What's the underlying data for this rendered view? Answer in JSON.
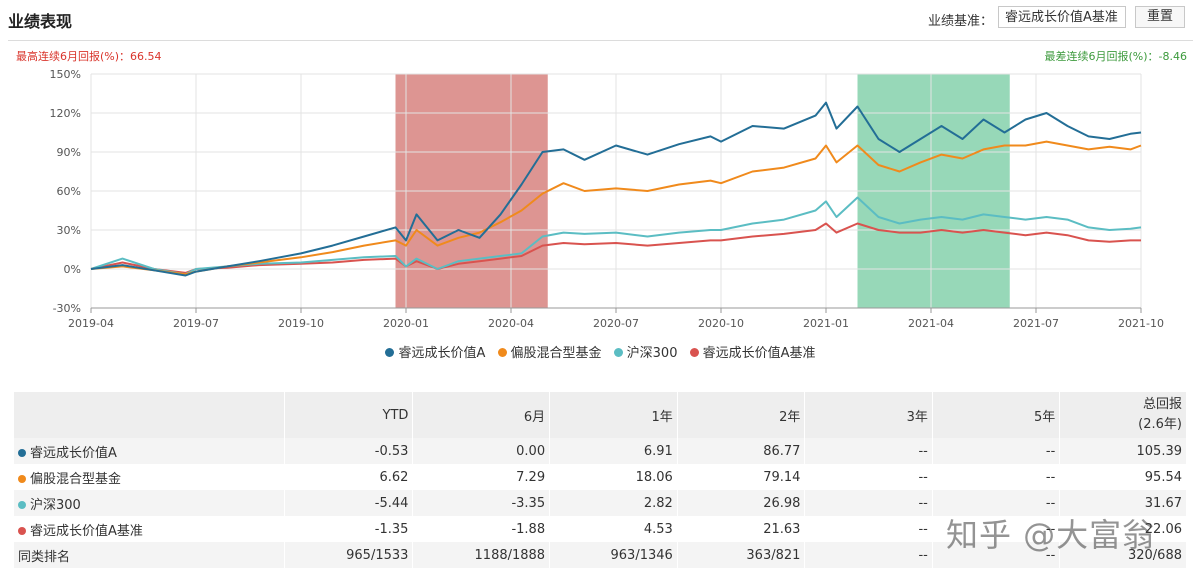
{
  "header": {
    "title": "业绩表现",
    "benchmark_label": "业绩基准：",
    "benchmark_value": "睿远成长价值A基准",
    "reset_label": "重置"
  },
  "notes": {
    "max": "最高连续6月回报(%)：66.54",
    "min": "最差连续6月回报(%)：-8.46"
  },
  "colors": {
    "fund": "#236e96",
    "peer": "#f08a1c",
    "csi300": "#5bbdc3",
    "bench": "#d9534f",
    "up_band": "#dd9592",
    "down_band": "#97d8b8"
  },
  "chart_data": {
    "type": "line",
    "ylim": [
      -30,
      150
    ],
    "yticks": [
      -30,
      0,
      30,
      60,
      90,
      120,
      150
    ],
    "ytick_labels": [
      "-30%",
      "0%",
      "30%",
      "60%",
      "90%",
      "120%",
      "150%"
    ],
    "xticks": [
      "2019-04",
      "2019-07",
      "2019-10",
      "2020-01",
      "2020-04",
      "2020-07",
      "2020-10",
      "2021-01",
      "2021-04",
      "2021-07",
      "2021-10"
    ],
    "bands": [
      {
        "label": "最高连续6月",
        "from": 2.9,
        "to": 4.35
      },
      {
        "label": "最差连续6月",
        "from": 7.3,
        "to": 8.75
      }
    ],
    "series": [
      {
        "name": "睿远成长价值A",
        "color_key": "fund",
        "x": [
          0,
          0.3,
          0.6,
          0.9,
          1.0,
          1.3,
          1.6,
          2.0,
          2.3,
          2.6,
          2.9,
          3.0,
          3.1,
          3.3,
          3.5,
          3.7,
          3.9,
          4.1,
          4.3,
          4.5,
          4.7,
          5.0,
          5.3,
          5.6,
          5.9,
          6.0,
          6.3,
          6.6,
          6.9,
          7.0,
          7.1,
          7.3,
          7.5,
          7.7,
          7.9,
          8.1,
          8.3,
          8.5,
          8.7,
          8.9,
          9.1,
          9.3,
          9.5,
          9.7,
          9.9,
          10.0
        ],
        "y": [
          0,
          3,
          -1,
          -5,
          -2,
          2,
          6,
          12,
          18,
          25,
          32,
          22,
          42,
          22,
          30,
          24,
          42,
          65,
          90,
          92,
          84,
          95,
          88,
          96,
          102,
          98,
          110,
          108,
          118,
          128,
          108,
          125,
          100,
          90,
          100,
          110,
          100,
          115,
          105,
          115,
          120,
          110,
          102,
          100,
          104,
          105
        ]
      },
      {
        "name": "偏股混合型基金",
        "color_key": "peer",
        "x": [
          0,
          0.3,
          0.6,
          0.9,
          1.0,
          1.3,
          1.6,
          2.0,
          2.3,
          2.6,
          2.9,
          3.0,
          3.1,
          3.3,
          3.5,
          3.7,
          3.9,
          4.1,
          4.3,
          4.5,
          4.7,
          5.0,
          5.3,
          5.6,
          5.9,
          6.0,
          6.3,
          6.6,
          6.9,
          7.0,
          7.1,
          7.3,
          7.5,
          7.7,
          7.9,
          8.1,
          8.3,
          8.5,
          8.7,
          8.9,
          9.1,
          9.3,
          9.5,
          9.7,
          9.9,
          10.0
        ],
        "y": [
          0,
          2,
          -1,
          -4,
          -2,
          2,
          5,
          9,
          13,
          18,
          22,
          18,
          30,
          18,
          24,
          28,
          36,
          45,
          58,
          66,
          60,
          62,
          60,
          65,
          68,
          66,
          75,
          78,
          85,
          95,
          82,
          95,
          80,
          75,
          82,
          88,
          85,
          92,
          95,
          95,
          98,
          95,
          92,
          94,
          92,
          95
        ]
      },
      {
        "name": "沪深300",
        "color_key": "csi300",
        "x": [
          0,
          0.3,
          0.6,
          0.9,
          1.0,
          1.3,
          1.6,
          2.0,
          2.3,
          2.6,
          2.9,
          3.0,
          3.1,
          3.3,
          3.5,
          3.7,
          3.9,
          4.1,
          4.3,
          4.5,
          4.7,
          5.0,
          5.3,
          5.6,
          5.9,
          6.0,
          6.3,
          6.6,
          6.9,
          7.0,
          7.1,
          7.3,
          7.5,
          7.7,
          7.9,
          8.1,
          8.3,
          8.5,
          8.7,
          8.9,
          9.1,
          9.3,
          9.5,
          9.7,
          9.9,
          10.0
        ],
        "y": [
          0,
          8,
          0,
          -4,
          0,
          2,
          4,
          5,
          7,
          9,
          10,
          2,
          8,
          0,
          6,
          8,
          10,
          12,
          25,
          28,
          27,
          28,
          25,
          28,
          30,
          30,
          35,
          38,
          45,
          52,
          40,
          55,
          40,
          35,
          38,
          40,
          38,
          42,
          40,
          38,
          40,
          38,
          32,
          30,
          31,
          32
        ]
      },
      {
        "name": "睿远成长价值A基准",
        "color_key": "bench",
        "x": [
          0,
          0.3,
          0.6,
          0.9,
          1.0,
          1.3,
          1.6,
          2.0,
          2.3,
          2.6,
          2.9,
          3.0,
          3.1,
          3.3,
          3.5,
          3.7,
          3.9,
          4.1,
          4.3,
          4.5,
          4.7,
          5.0,
          5.3,
          5.6,
          5.9,
          6.0,
          6.3,
          6.6,
          6.9,
          7.0,
          7.1,
          7.3,
          7.5,
          7.7,
          7.9,
          8.1,
          8.3,
          8.5,
          8.7,
          8.9,
          9.1,
          9.3,
          9.5,
          9.7,
          9.9,
          10.0
        ],
        "y": [
          0,
          5,
          0,
          -3,
          0,
          1,
          3,
          4,
          5,
          7,
          8,
          2,
          6,
          0,
          4,
          6,
          8,
          10,
          18,
          20,
          19,
          20,
          18,
          20,
          22,
          22,
          25,
          27,
          30,
          35,
          28,
          35,
          30,
          28,
          28,
          30,
          28,
          30,
          28,
          26,
          28,
          26,
          22,
          21,
          22,
          22
        ]
      }
    ]
  },
  "table": {
    "headers": [
      "",
      "YTD",
      "6月",
      "1年",
      "2年",
      "3年",
      "5年",
      "总回报",
      "(2.6年)"
    ],
    "rows": [
      {
        "name": "睿远成长价值A",
        "color_key": "fund",
        "values": [
          "-0.53",
          "0.00",
          "6.91",
          "86.77",
          "--",
          "--",
          "105.39"
        ]
      },
      {
        "name": "偏股混合型基金",
        "color_key": "peer",
        "values": [
          "6.62",
          "7.29",
          "18.06",
          "79.14",
          "--",
          "--",
          "95.54"
        ]
      },
      {
        "name": "沪深300",
        "color_key": "csi300",
        "values": [
          "-5.44",
          "-3.35",
          "2.82",
          "26.98",
          "--",
          "--",
          "31.67"
        ]
      },
      {
        "name": "睿远成长价值A基准",
        "color_key": "bench",
        "values": [
          "-1.35",
          "-1.88",
          "4.53",
          "21.63",
          "--",
          "--",
          "22.06"
        ]
      },
      {
        "name": "同类排名",
        "color_key": "",
        "values": [
          "965/1533",
          "1188/1888",
          "963/1346",
          "363/821",
          "--",
          "--",
          "320/688"
        ]
      }
    ]
  },
  "watermark": "知乎 @大富翁"
}
